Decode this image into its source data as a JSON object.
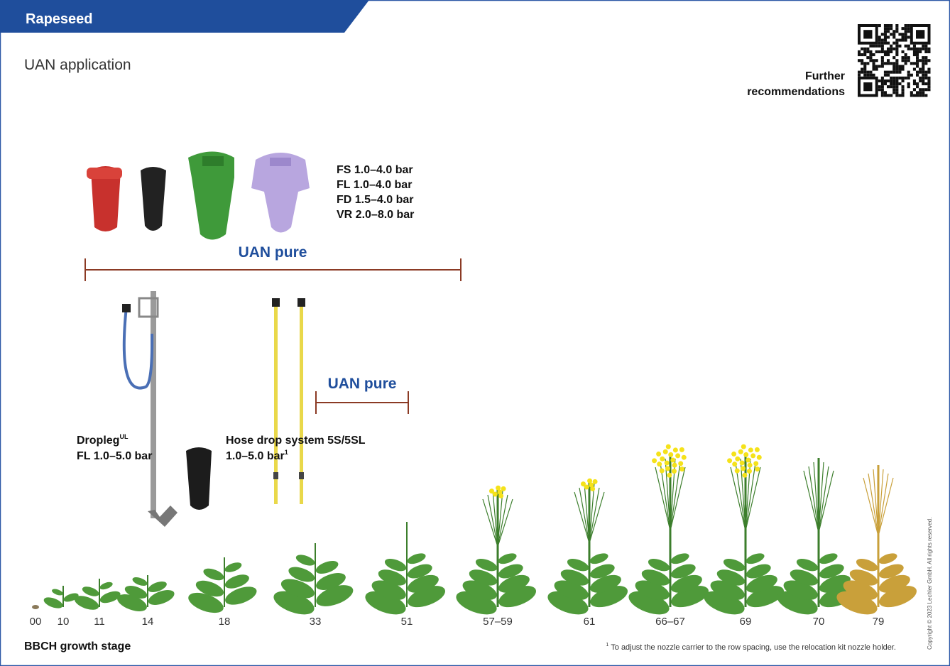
{
  "header": {
    "title": "Rapeseed",
    "subtitle": "UAN application"
  },
  "qr": {
    "lines": [
      "Further",
      "recommendations"
    ]
  },
  "nozzles": {
    "pressures": [
      "FS 1.0–4.0 bar",
      "FL 1.0–4.0 bar",
      "FD 1.5–4.0 bar",
      "VR 2.0–8.0 bar"
    ]
  },
  "ranges": [
    {
      "label": "UAN pure"
    },
    {
      "label": "UAN pure"
    }
  ],
  "dropleg": {
    "name": "Dropleg",
    "sup": "UL",
    "spec": "FL 1.0–5.0 bar"
  },
  "hose": {
    "name": "Hose drop system 5S/5SL",
    "spec": "1.0–5.0 bar",
    "note_ref": "1"
  },
  "stages": [
    "00",
    "10",
    "11",
    "14",
    "18",
    "33",
    "51",
    "57–59",
    "61",
    "66–67",
    "69",
    "70",
    "79"
  ],
  "axis_label": "BBCH growth stage",
  "footnote": {
    "mark": "1",
    "text": "To adjust the nozzle carrier to the row spacing, use the relocation kit nozzle holder."
  },
  "copyright": "Copyright © 2023 Lechler GmbH. All rights reserved."
}
